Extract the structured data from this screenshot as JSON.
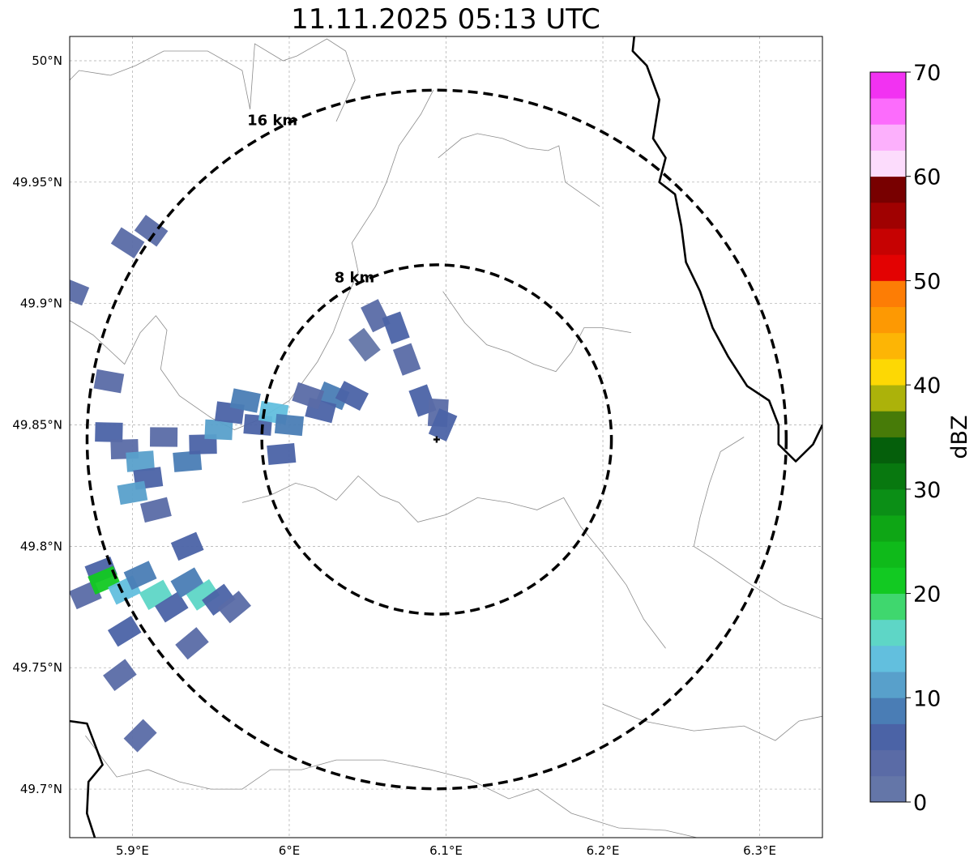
{
  "title": "11.11.2025 05:13 UTC",
  "map": {
    "lon_range": [
      5.86,
      6.34
    ],
    "lat_range": [
      49.68,
      50.01
    ],
    "lon_ticks": [
      {
        "value": 5.9,
        "label": "5.9°E"
      },
      {
        "value": 6.0,
        "label": "6°E"
      },
      {
        "value": 6.1,
        "label": "6.1°E"
      },
      {
        "value": 6.2,
        "label": "6.2°E"
      },
      {
        "value": 6.3,
        "label": "6.3°E"
      }
    ],
    "lat_ticks": [
      {
        "value": 49.7,
        "label": "49.7°N"
      },
      {
        "value": 49.75,
        "label": "49.75°N"
      },
      {
        "value": 49.8,
        "label": "49.8°N"
      },
      {
        "value": 49.85,
        "label": "49.85°N"
      },
      {
        "value": 49.9,
        "label": "49.9°N"
      },
      {
        "value": 49.95,
        "label": "49.95°N"
      },
      {
        "value": 50.0,
        "label": "50°N"
      }
    ],
    "gridlines": true,
    "radar_site": {
      "lon": 6.094,
      "lat": 49.844
    },
    "range_rings": [
      {
        "label": "8 km",
        "radius_km": 8
      },
      {
        "label": "16 km",
        "radius_km": 16
      }
    ],
    "country_borders": [
      [
        [
          6.22,
          50.01
        ],
        [
          6.219,
          50.004
        ],
        [
          6.228,
          49.998
        ],
        [
          6.236,
          49.984
        ],
        [
          6.232,
          49.968
        ],
        [
          6.24,
          49.96
        ],
        [
          6.236,
          49.95
        ],
        [
          6.246,
          49.945
        ],
        [
          6.25,
          49.932
        ],
        [
          6.253,
          49.917
        ],
        [
          6.262,
          49.905
        ],
        [
          6.27,
          49.89
        ],
        [
          6.28,
          49.878
        ],
        [
          6.292,
          49.866
        ],
        [
          6.306,
          49.86
        ],
        [
          6.312,
          49.85
        ],
        [
          6.312,
          49.842
        ],
        [
          6.323,
          49.835
        ],
        [
          6.334,
          49.842
        ],
        [
          6.34,
          49.85
        ]
      ],
      [
        [
          5.86,
          49.728
        ],
        [
          5.871,
          49.727
        ],
        [
          5.881,
          49.71
        ],
        [
          5.872,
          49.703
        ],
        [
          5.871,
          49.69
        ],
        [
          5.876,
          49.68
        ]
      ]
    ],
    "admin_boundaries": [
      [
        [
          5.86,
          49.992
        ],
        [
          5.866,
          49.996
        ],
        [
          5.886,
          49.994
        ],
        [
          5.902,
          49.998
        ],
        [
          5.92,
          50.004
        ],
        [
          5.948,
          50.004
        ],
        [
          5.97,
          49.996
        ],
        [
          5.975,
          49.98
        ],
        [
          5.978,
          50.007
        ],
        [
          5.996,
          50.0
        ],
        [
          6.005,
          50.002
        ],
        [
          6.024,
          50.009
        ],
        [
          6.036,
          50.004
        ],
        [
          6.042,
          49.992
        ],
        [
          6.03,
          49.975
        ]
      ],
      [
        [
          5.86,
          49.893
        ],
        [
          5.875,
          49.887
        ],
        [
          5.895,
          49.875
        ],
        [
          5.905,
          49.888
        ],
        [
          5.915,
          49.895
        ],
        [
          5.922,
          49.889
        ],
        [
          5.918,
          49.873
        ],
        [
          5.93,
          49.862
        ],
        [
          5.95,
          49.853
        ],
        [
          5.965,
          49.848
        ],
        [
          5.98,
          49.852
        ],
        [
          6.0,
          49.86
        ],
        [
          6.018,
          49.876
        ],
        [
          6.028,
          49.888
        ],
        [
          6.035,
          49.9
        ],
        [
          6.044,
          49.913
        ],
        [
          6.04,
          49.925
        ],
        [
          6.055,
          49.94
        ],
        [
          6.062,
          49.95
        ],
        [
          6.07,
          49.965
        ],
        [
          6.084,
          49.978
        ],
        [
          6.092,
          49.988
        ]
      ],
      [
        [
          5.97,
          49.818
        ],
        [
          5.988,
          49.821
        ],
        [
          6.004,
          49.826
        ],
        [
          6.016,
          49.824
        ],
        [
          6.03,
          49.819
        ],
        [
          6.044,
          49.829
        ],
        [
          6.058,
          49.821
        ],
        [
          6.07,
          49.818
        ],
        [
          6.082,
          49.81
        ],
        [
          6.1,
          49.813
        ],
        [
          6.12,
          49.82
        ],
        [
          6.14,
          49.818
        ],
        [
          6.158,
          49.815
        ],
        [
          6.175,
          49.82
        ],
        [
          6.186,
          49.808
        ],
        [
          6.2,
          49.797
        ],
        [
          6.215,
          49.784
        ],
        [
          6.226,
          49.77
        ],
        [
          6.24,
          49.758
        ]
      ],
      [
        [
          6.095,
          49.96
        ],
        [
          6.11,
          49.968
        ],
        [
          6.12,
          49.97
        ],
        [
          6.136,
          49.968
        ],
        [
          6.152,
          49.964
        ],
        [
          6.165,
          49.963
        ],
        [
          6.172,
          49.965
        ],
        [
          6.176,
          49.95
        ],
        [
          6.187,
          49.945
        ],
        [
          6.198,
          49.94
        ]
      ],
      [
        [
          6.098,
          49.905
        ],
        [
          6.112,
          49.892
        ],
        [
          6.126,
          49.883
        ],
        [
          6.14,
          49.88
        ],
        [
          6.156,
          49.875
        ],
        [
          6.17,
          49.872
        ],
        [
          6.18,
          49.88
        ],
        [
          6.188,
          49.89
        ],
        [
          6.2,
          49.89
        ],
        [
          6.218,
          49.888
        ]
      ],
      [
        [
          6.29,
          49.845
        ],
        [
          6.275,
          49.839
        ],
        [
          6.268,
          49.826
        ],
        [
          6.262,
          49.812
        ],
        [
          6.258,
          49.8
        ],
        [
          6.27,
          49.795
        ],
        [
          6.295,
          49.784
        ],
        [
          6.315,
          49.776
        ],
        [
          6.34,
          49.77
        ]
      ],
      [
        [
          6.2,
          49.735
        ],
        [
          6.226,
          49.728
        ],
        [
          6.258,
          49.724
        ],
        [
          6.29,
          49.726
        ],
        [
          6.31,
          49.72
        ],
        [
          6.325,
          49.728
        ],
        [
          6.34,
          49.73
        ]
      ],
      [
        [
          5.87,
          49.722
        ],
        [
          5.89,
          49.705
        ],
        [
          5.91,
          49.708
        ],
        [
          5.93,
          49.703
        ],
        [
          5.95,
          49.7
        ],
        [
          5.97,
          49.7
        ],
        [
          5.988,
          49.708
        ],
        [
          6.008,
          49.708
        ],
        [
          6.03,
          49.712
        ],
        [
          6.06,
          49.712
        ],
        [
          6.09,
          49.708
        ],
        [
          6.115,
          49.704
        ],
        [
          6.14,
          49.696
        ],
        [
          6.158,
          49.7
        ],
        [
          6.18,
          49.69
        ],
        [
          6.21,
          49.684
        ],
        [
          6.24,
          49.683
        ],
        [
          6.26,
          49.68
        ]
      ]
    ],
    "echoes": [
      {
        "lon": 5.885,
        "lat": 49.847,
        "dbz": 7
      },
      {
        "lon": 5.895,
        "lat": 49.84,
        "dbz": 3
      },
      {
        "lon": 5.905,
        "lat": 49.835,
        "dbz": 10
      },
      {
        "lon": 5.91,
        "lat": 49.828,
        "dbz": 6
      },
      {
        "lon": 5.92,
        "lat": 49.845,
        "dbz": 4
      },
      {
        "lon": 5.935,
        "lat": 49.835,
        "dbz": 8
      },
      {
        "lon": 5.945,
        "lat": 49.842,
        "dbz": 5
      },
      {
        "lon": 5.955,
        "lat": 49.848,
        "dbz": 12
      },
      {
        "lon": 5.962,
        "lat": 49.855,
        "dbz": 7
      },
      {
        "lon": 5.972,
        "lat": 49.86,
        "dbz": 9
      },
      {
        "lon": 5.98,
        "lat": 49.85,
        "dbz": 6
      },
      {
        "lon": 5.99,
        "lat": 49.855,
        "dbz": 14
      },
      {
        "lon": 6.0,
        "lat": 49.85,
        "dbz": 8
      },
      {
        "lon": 5.995,
        "lat": 49.838,
        "dbz": 5
      },
      {
        "lon": 5.915,
        "lat": 49.815,
        "dbz": 3
      },
      {
        "lon": 5.9,
        "lat": 49.822,
        "dbz": 11
      },
      {
        "lon": 5.885,
        "lat": 49.868,
        "dbz": 4
      },
      {
        "lon": 5.88,
        "lat": 49.79,
        "dbz": 6
      },
      {
        "lon": 5.87,
        "lat": 49.78,
        "dbz": 4
      },
      {
        "lon": 5.882,
        "lat": 49.786,
        "dbz": 22
      },
      {
        "lon": 5.895,
        "lat": 49.782,
        "dbz": 13
      },
      {
        "lon": 5.905,
        "lat": 49.788,
        "dbz": 8
      },
      {
        "lon": 5.915,
        "lat": 49.78,
        "dbz": 16
      },
      {
        "lon": 5.925,
        "lat": 49.775,
        "dbz": 5
      },
      {
        "lon": 5.935,
        "lat": 49.785,
        "dbz": 9
      },
      {
        "lon": 5.945,
        "lat": 49.78,
        "dbz": 15
      },
      {
        "lon": 5.955,
        "lat": 49.778,
        "dbz": 6
      },
      {
        "lon": 5.965,
        "lat": 49.775,
        "dbz": 4
      },
      {
        "lon": 5.895,
        "lat": 49.765,
        "dbz": 5
      },
      {
        "lon": 5.938,
        "lat": 49.76,
        "dbz": 4
      },
      {
        "lon": 5.935,
        "lat": 49.8,
        "dbz": 6
      },
      {
        "lon": 5.892,
        "lat": 49.747,
        "dbz": 3
      },
      {
        "lon": 5.905,
        "lat": 49.722,
        "dbz": 3
      },
      {
        "lon": 5.862,
        "lat": 49.905,
        "dbz": 4
      },
      {
        "lon": 5.897,
        "lat": 49.925,
        "dbz": 4
      },
      {
        "lon": 5.912,
        "lat": 49.93,
        "dbz": 3
      },
      {
        "lon": 6.055,
        "lat": 49.895,
        "dbz": 4
      },
      {
        "lon": 6.068,
        "lat": 49.89,
        "dbz": 7
      },
      {
        "lon": 6.048,
        "lat": 49.883,
        "dbz": 2
      },
      {
        "lon": 6.075,
        "lat": 49.877,
        "dbz": 3
      },
      {
        "lon": 6.028,
        "lat": 49.862,
        "dbz": 9
      },
      {
        "lon": 6.04,
        "lat": 49.862,
        "dbz": 5
      },
      {
        "lon": 6.02,
        "lat": 49.856,
        "dbz": 6
      },
      {
        "lon": 6.012,
        "lat": 49.862,
        "dbz": 4
      },
      {
        "lon": 6.085,
        "lat": 49.86,
        "dbz": 5
      },
      {
        "lon": 6.095,
        "lat": 49.855,
        "dbz": 3
      },
      {
        "lon": 6.098,
        "lat": 49.85,
        "dbz": 6
      }
    ]
  },
  "colorbar": {
    "label": "dBZ",
    "min": 0,
    "max": 70,
    "step": 2.5,
    "tick_labels": [
      {
        "value": 0,
        "label": "0"
      },
      {
        "value": 10,
        "label": "10"
      },
      {
        "value": 20,
        "label": "20"
      },
      {
        "value": 30,
        "label": "30"
      },
      {
        "value": 40,
        "label": "40"
      },
      {
        "value": 50,
        "label": "50"
      },
      {
        "value": 60,
        "label": "60"
      },
      {
        "value": 70,
        "label": "70"
      }
    ],
    "colors": [
      "#6476a8",
      "#5a6ba6",
      "#4b63a6",
      "#4a7db5",
      "#58a0cb",
      "#62bfde",
      "#5ed6c6",
      "#3fd76e",
      "#12c922",
      "#0fba1a",
      "#0ea615",
      "#0b8f16",
      "#08780f",
      "#055f0b",
      "#477b08",
      "#acb20a",
      "#fdd804",
      "#fdb505",
      "#fd9903",
      "#fd7d05",
      "#e30202",
      "#c60202",
      "#a00101",
      "#780000",
      "#fcdcfc",
      "#fcb0fc",
      "#fc6cfc",
      "#f232f2"
    ]
  }
}
